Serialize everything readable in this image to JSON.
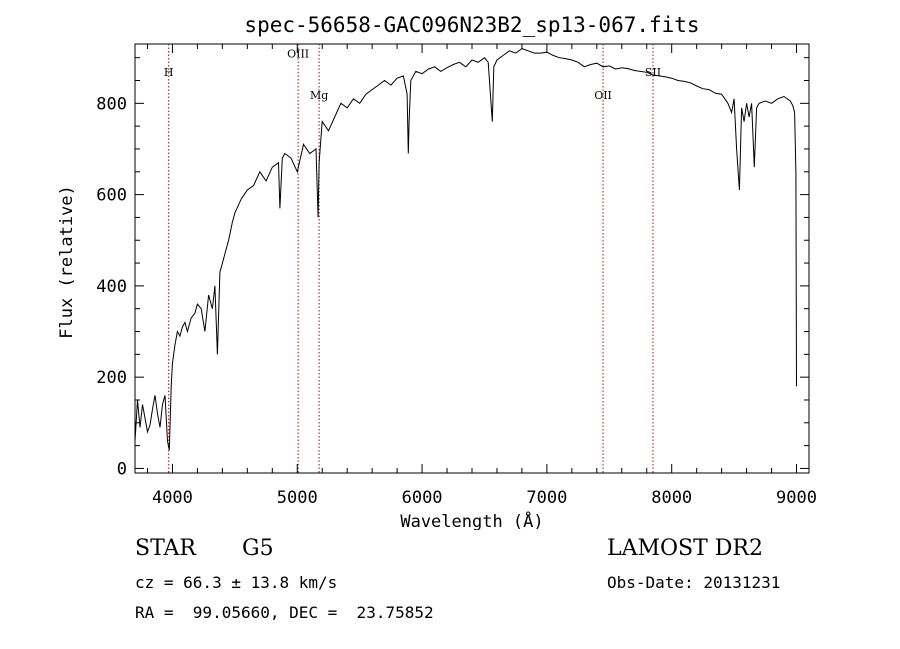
{
  "chart_data": {
    "type": "line",
    "title": "spec-56658-GAC096N23B2_sp13-067.fits",
    "xlabel": "Wavelength (Å)",
    "ylabel": "Flux (relative)",
    "xlim": [
      3700,
      9100
    ],
    "ylim": [
      -10,
      930
    ],
    "x_ticks": [
      4000,
      5000,
      6000,
      7000,
      8000,
      9000
    ],
    "y_ticks": [
      0,
      200,
      400,
      600,
      800
    ],
    "grid": false,
    "series": [
      {
        "x": [
          3700,
          3720,
          3740,
          3760,
          3780,
          3800,
          3820,
          3840,
          3860,
          3880,
          3900,
          3920,
          3940,
          3960,
          3975,
          3990,
          4000,
          4020,
          4040,
          4060,
          4080,
          4100,
          4120,
          4150,
          4180,
          4200,
          4230,
          4260,
          4290,
          4320,
          4340,
          4360,
          4380,
          4400,
          4420,
          4450,
          4480,
          4500,
          4550,
          4600,
          4650,
          4700,
          4750,
          4800,
          4850,
          4861,
          4880,
          4900,
          4950,
          5000,
          5050,
          5100,
          5150,
          5167,
          5175,
          5200,
          5250,
          5300,
          5350,
          5400,
          5450,
          5500,
          5550,
          5600,
          5650,
          5700,
          5750,
          5800,
          5850,
          5880,
          5890,
          5896,
          5910,
          5950,
          6000,
          6050,
          6100,
          6150,
          6200,
          6250,
          6300,
          6350,
          6400,
          6450,
          6500,
          6530,
          6550,
          6563,
          6575,
          6600,
          6650,
          6700,
          6750,
          6800,
          6850,
          6900,
          6950,
          7000,
          7050,
          7100,
          7150,
          7200,
          7250,
          7300,
          7350,
          7400,
          7450,
          7500,
          7550,
          7600,
          7650,
          7700,
          7750,
          7800,
          7850,
          7900,
          7950,
          8000,
          8050,
          8100,
          8150,
          8200,
          8250,
          8300,
          8350,
          8400,
          8450,
          8480,
          8500,
          8520,
          8542,
          8560,
          8580,
          8600,
          8620,
          8640,
          8662,
          8680,
          8700,
          8750,
          8800,
          8850,
          8900,
          8950,
          8970,
          8985,
          8995,
          9000
        ],
        "y": [
          60,
          150,
          90,
          140,
          110,
          80,
          95,
          130,
          160,
          120,
          90,
          140,
          160,
          60,
          40,
          180,
          230,
          270,
          300,
          290,
          310,
          320,
          300,
          330,
          340,
          360,
          350,
          300,
          380,
          350,
          400,
          250,
          430,
          450,
          470,
          500,
          540,
          560,
          590,
          610,
          620,
          650,
          630,
          660,
          670,
          570,
          680,
          690,
          680,
          650,
          710,
          690,
          700,
          550,
          670,
          760,
          740,
          770,
          800,
          790,
          810,
          800,
          820,
          830,
          840,
          850,
          840,
          855,
          860,
          820,
          690,
          760,
          850,
          870,
          865,
          875,
          880,
          870,
          878,
          885,
          890,
          880,
          895,
          890,
          900,
          890,
          810,
          760,
          880,
          895,
          905,
          915,
          910,
          920,
          915,
          910,
          910,
          912,
          905,
          900,
          898,
          895,
          890,
          880,
          885,
          888,
          880,
          882,
          875,
          878,
          876,
          872,
          870,
          868,
          862,
          860,
          858,
          855,
          850,
          848,
          845,
          838,
          832,
          830,
          822,
          820,
          800,
          780,
          810,
          700,
          610,
          790,
          760,
          800,
          770,
          800,
          660,
          790,
          800,
          805,
          800,
          810,
          815,
          805,
          795,
          780,
          650,
          180
        ]
      }
    ],
    "annotations": [
      {
        "label": "H",
        "x": 3970,
        "y": 860
      },
      {
        "label": "OIII",
        "x": 5007,
        "y": 900
      },
      {
        "label": "Mg",
        "x": 5175,
        "y": 810
      },
      {
        "label": "OII",
        "x": 7450,
        "y": 810
      },
      {
        "label": "SII",
        "x": 7850,
        "y": 860
      }
    ]
  },
  "info": {
    "class_label": "STAR",
    "subclass_label": "G5",
    "survey": "LAMOST DR2",
    "cz": "cz = 66.3 ± 13.8 km/s",
    "obs_date": "Obs-Date: 20131231",
    "coords": "RA =  99.05660, DEC =  23.75852"
  }
}
